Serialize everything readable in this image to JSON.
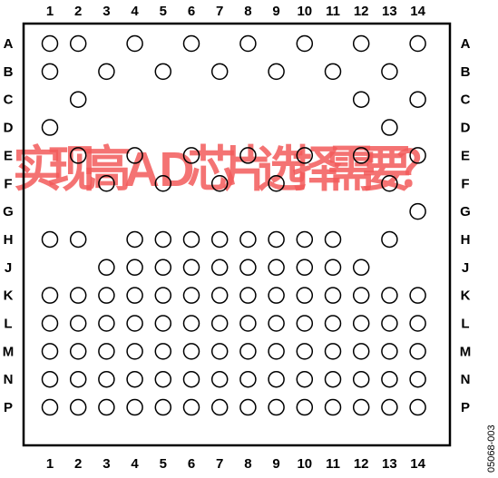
{
  "diagram": {
    "columns": [
      "1",
      "2",
      "3",
      "4",
      "5",
      "6",
      "7",
      "8",
      "9",
      "10",
      "11",
      "12",
      "13",
      "14"
    ],
    "rows": [
      "A",
      "B",
      "C",
      "D",
      "E",
      "F",
      "G",
      "H",
      "J",
      "K",
      "L",
      "M",
      "N",
      "P"
    ],
    "balls": {
      "A": [
        1,
        2,
        4,
        6,
        8,
        10,
        12,
        14
      ],
      "B": [
        1,
        3,
        5,
        7,
        9,
        11,
        13
      ],
      "C": [
        2,
        12,
        14
      ],
      "D": [
        1,
        13
      ],
      "E": [
        2,
        4,
        6,
        8,
        10,
        12,
        14
      ],
      "F": [
        3,
        5,
        7,
        9,
        13
      ],
      "G": [
        14
      ],
      "H": [
        1,
        2,
        4,
        5,
        6,
        7,
        8,
        9,
        10,
        11,
        13
      ],
      "J": [
        3,
        4,
        5,
        6,
        7,
        8,
        9,
        10,
        11,
        12
      ],
      "K": [
        1,
        2,
        3,
        4,
        5,
        6,
        7,
        8,
        9,
        10,
        11,
        12,
        13,
        14
      ],
      "L": [
        1,
        2,
        3,
        4,
        5,
        6,
        7,
        8,
        9,
        10,
        11,
        12,
        13,
        14
      ],
      "M": [
        1,
        2,
        3,
        4,
        5,
        6,
        7,
        8,
        9,
        10,
        11,
        12,
        13,
        14
      ],
      "N": [
        1,
        2,
        3,
        4,
        5,
        6,
        7,
        8,
        9,
        10,
        11,
        12,
        13,
        14
      ],
      "P": [
        1,
        2,
        3,
        4,
        5,
        6,
        7,
        8,
        9,
        10,
        11,
        12,
        13,
        14
      ]
    },
    "figure_code": "05068-003",
    "watermark_text": "实现高AD芯片选择需要？",
    "colors": {
      "outline": "#000000",
      "watermark": "#f25a5a",
      "background": "#ffffff"
    }
  }
}
